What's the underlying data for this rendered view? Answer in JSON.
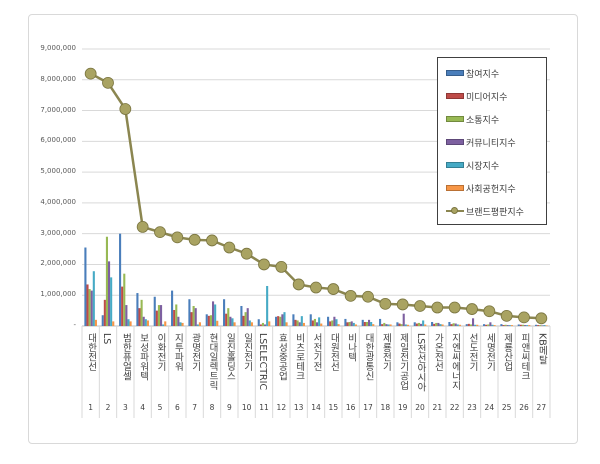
{
  "chart_data": {
    "type": "bar+line",
    "categories": [
      "대한전선",
      "LS",
      "범한퓨얼셀",
      "보성파워텍",
      "이화전기",
      "지투파워",
      "광명전기",
      "현대일렉트릭",
      "일진홀딩스",
      "일진전기",
      "LSELECTRIC",
      "효성중공업",
      "비츠로테크",
      "서전기전",
      "대원전선",
      "비나텍",
      "대한광통신",
      "제룡전기",
      "제일전기공업",
      "LS전선아시아",
      "가온전선",
      "지엔씨에너지",
      "선도전기",
      "세명전기",
      "제룡산업",
      "피앤씨테크",
      "KB메탈"
    ],
    "ranks": [
      "1",
      "2",
      "3",
      "4",
      "5",
      "6",
      "7",
      "8",
      "9",
      "10",
      "11",
      "12",
      "13",
      "14",
      "15",
      "16",
      "17",
      "18",
      "19",
      "20",
      "21",
      "22",
      "23",
      "24",
      "25",
      "26",
      "27"
    ],
    "ylim": [
      0,
      9000000
    ],
    "yticks": [
      "-",
      "1,000,000",
      "2,000,000",
      "3,000,000",
      "4,000,000",
      "5,000,000",
      "6,000,000",
      "7,000,000",
      "8,000,000",
      "9,000,000"
    ],
    "grid": true,
    "legend_position": "top-right",
    "series": [
      {
        "name": "참여지수",
        "kind": "bar",
        "color": "#4a7ebb",
        "values": [
          2550000,
          350000,
          3000000,
          1070000,
          950000,
          1150000,
          870000,
          380000,
          870000,
          650000,
          220000,
          300000,
          380000,
          380000,
          300000,
          230000,
          200000,
          230000,
          120000,
          120000,
          130000,
          130000,
          60000,
          60000,
          60000,
          50000,
          40000
        ]
      },
      {
        "name": "미디어지수",
        "kind": "bar",
        "color": "#be4b48",
        "values": [
          1350000,
          850000,
          1280000,
          580000,
          500000,
          520000,
          450000,
          330000,
          400000,
          330000,
          50000,
          320000,
          200000,
          180000,
          150000,
          120000,
          130000,
          60000,
          80000,
          80000,
          70000,
          60000,
          70000,
          40000,
          30000,
          40000,
          30000
        ]
      },
      {
        "name": "소통지수",
        "kind": "bar",
        "color": "#98b954",
        "values": [
          1200000,
          2900000,
          1700000,
          850000,
          680000,
          700000,
          650000,
          350000,
          580000,
          450000,
          100000,
          300000,
          180000,
          230000,
          180000,
          130000,
          130000,
          100000,
          60000,
          100000,
          100000,
          90000,
          50000,
          50000,
          40000,
          40000,
          30000
        ]
      },
      {
        "name": "커뮤니티지수",
        "kind": "bar",
        "color": "#7d60a0",
        "values": [
          1150000,
          2100000,
          680000,
          300000,
          680000,
          300000,
          580000,
          800000,
          300000,
          580000,
          50000,
          380000,
          120000,
          120000,
          300000,
          150000,
          200000,
          60000,
          400000,
          70000,
          100000,
          80000,
          250000,
          120000,
          30000,
          30000,
          20000
        ]
      },
      {
        "name": "시장지수",
        "kind": "bar",
        "color": "#46aac5",
        "values": [
          1780000,
          1580000,
          220000,
          220000,
          50000,
          120000,
          50000,
          700000,
          250000,
          180000,
          1300000,
          450000,
          320000,
          280000,
          220000,
          100000,
          130000,
          50000,
          50000,
          180000,
          60000,
          50000,
          40000,
          40000,
          30000,
          30000,
          30000
        ]
      },
      {
        "name": "사회공헌지수",
        "kind": "bar",
        "color": "#f79646",
        "values": [
          200000,
          150000,
          150000,
          180000,
          150000,
          100000,
          120000,
          170000,
          120000,
          120000,
          150000,
          120000,
          100000,
          80000,
          60000,
          50000,
          60000,
          50000,
          40000,
          50000,
          50000,
          40000,
          40000,
          30000,
          30000,
          30000,
          20000
        ]
      },
      {
        "name": "브랜드평판지수",
        "kind": "line",
        "color": "#8b8650",
        "values": [
          8200000,
          7900000,
          7050000,
          3220000,
          3050000,
          2880000,
          2800000,
          2780000,
          2550000,
          2350000,
          2000000,
          1920000,
          1350000,
          1250000,
          1200000,
          980000,
          950000,
          720000,
          700000,
          650000,
          600000,
          600000,
          550000,
          480000,
          330000,
          280000,
          250000
        ]
      }
    ]
  }
}
